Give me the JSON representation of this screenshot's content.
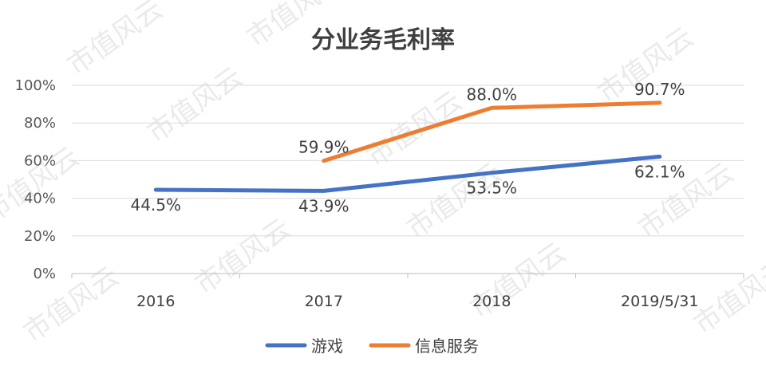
{
  "watermark": "市值风云",
  "chart_data": {
    "type": "line",
    "title": "分业务毛利率",
    "categories": [
      "2016",
      "2017",
      "2018",
      "2019/5/31"
    ],
    "y_ticks": [
      "0%",
      "20%",
      "40%",
      "60%",
      "80%",
      "100%"
    ],
    "ylim": [
      0,
      100
    ],
    "grid": true,
    "legend_position": "bottom",
    "series": [
      {
        "name": "游戏",
        "color": "#4472C4",
        "values": [
          44.5,
          43.9,
          53.5,
          62.1
        ],
        "labels": [
          "44.5%",
          "43.9%",
          "53.5%",
          "62.1%"
        ]
      },
      {
        "name": "信息服务",
        "color": "#ED7D31",
        "values": [
          null,
          59.9,
          88.0,
          90.7
        ],
        "labels": [
          "",
          "59.9%",
          "88.0%",
          "90.7%"
        ]
      }
    ]
  }
}
